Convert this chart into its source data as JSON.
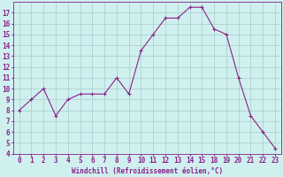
{
  "x_labels": [
    "0",
    "1",
    "2",
    "3",
    "4",
    "5",
    "6",
    "7",
    "8",
    "9",
    "10",
    "11",
    "12",
    "13",
    "14",
    "15",
    "18",
    "19",
    "20",
    "21",
    "22",
    "23"
  ],
  "y": [
    8.0,
    9.0,
    10.0,
    7.5,
    9.0,
    9.5,
    9.5,
    9.5,
    11.0,
    9.5,
    13.5,
    15.0,
    16.5,
    16.5,
    17.5,
    17.5,
    15.5,
    15.0,
    11.0,
    7.5,
    6.0,
    4.5
  ],
  "line_color": "#882288",
  "marker": "+",
  "bg_color": "#d0f0f0",
  "grid_color": "#aacccc",
  "axis_color": "#882288",
  "xlabel": "Windchill (Refroidissement éolien,°C)",
  "ylim": [
    4,
    18
  ],
  "yticks": [
    4,
    5,
    6,
    7,
    8,
    9,
    10,
    11,
    12,
    13,
    14,
    15,
    16,
    17
  ],
  "linewidth": 0.8,
  "markersize": 3,
  "xlabel_fontsize": 5.5,
  "tick_fontsize": 5.5
}
